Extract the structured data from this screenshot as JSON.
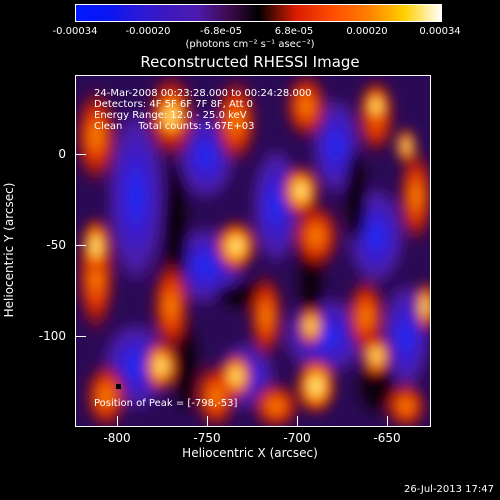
{
  "colorbar": {
    "ticks": [
      "-0.00034",
      "-0.00020",
      "-6.8e-05",
      "6.8e-05",
      "0.00020",
      "0.00034"
    ],
    "units": "(photons cm⁻² s⁻¹ asec⁻²)"
  },
  "title": "Reconstructed RHESSI Image",
  "annotations": {
    "line1": "24-Mar-2008 00:23:28.000 to 00:24:28.000",
    "line2": "Detectors: 4F 5F 6F 7F 8F, Att 0",
    "line3": "Energy Range: 12.0 - 25.0 keV",
    "line4": "Clean     Total counts: 5.67E+03",
    "peak": "Position of Peak = [-798,-53]"
  },
  "x_axis": {
    "label": "Heliocentric X (arcsec)",
    "ticks": [
      "-800",
      "-750",
      "-700",
      "-650"
    ]
  },
  "y_axis": {
    "label": "Heliocentric Y (arcsec)",
    "ticks": [
      "0",
      "-50",
      "-100"
    ]
  },
  "timestamp": "26-Jul-2013 17:47"
}
